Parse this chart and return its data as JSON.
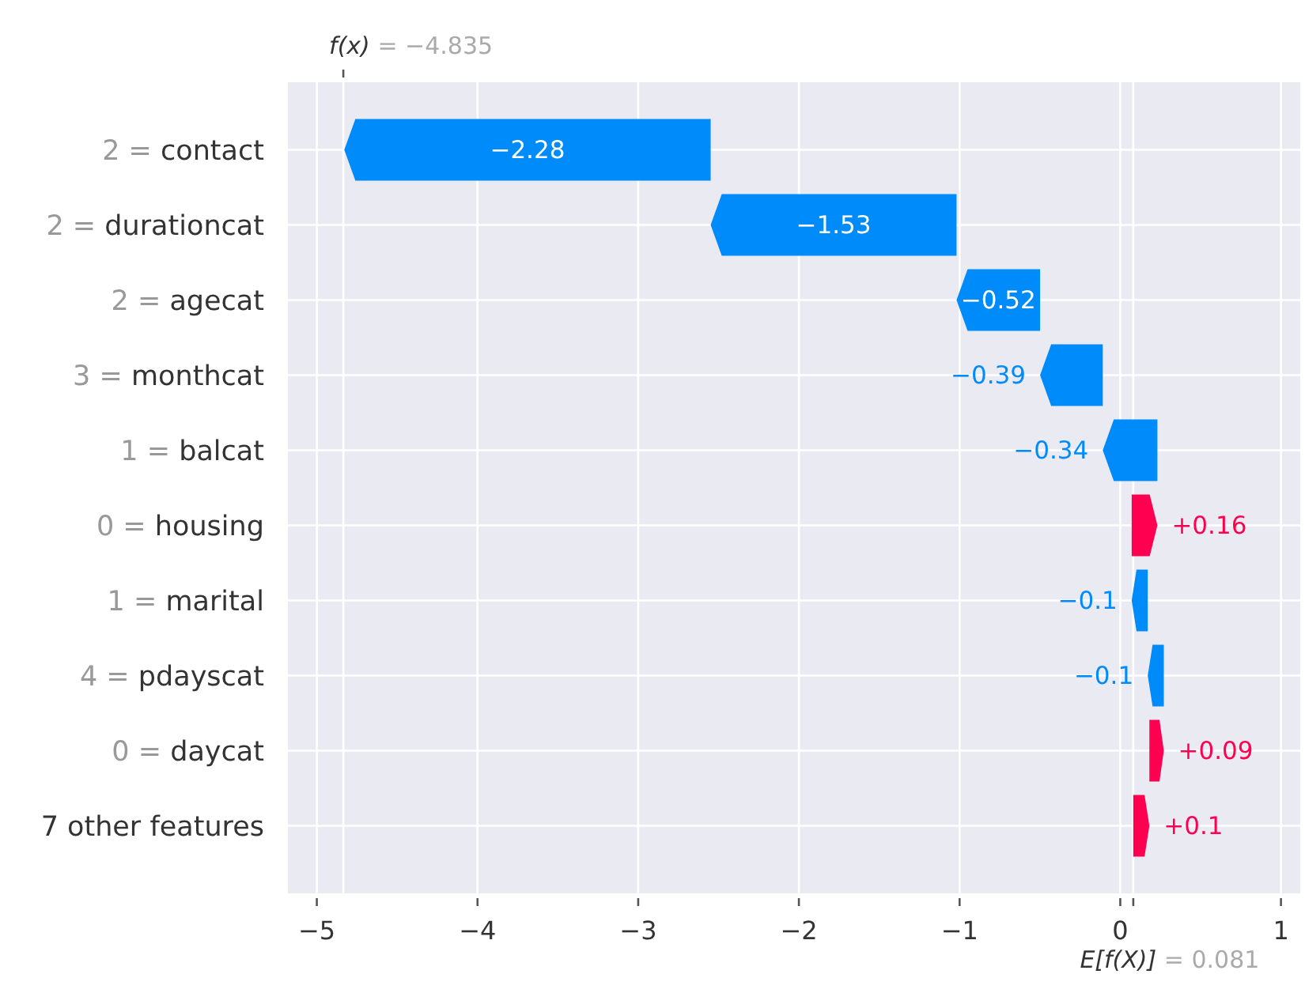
{
  "chart_data": {
    "type": "bar",
    "orientation": "horizontal",
    "categories": [
      "2 = contact",
      "2 = durationcat",
      "2 = agecat",
      "3 = monthcat",
      "1 = balcat",
      "0 = housing",
      "1 = marital",
      "4 = pdayscat",
      "0 = daycat",
      "7 other features"
    ],
    "values": [
      -2.28,
      -1.53,
      -0.52,
      -0.39,
      -0.34,
      0.16,
      -0.1,
      -0.1,
      0.09,
      0.1
    ],
    "base": [
      -2.549,
      -1.019,
      -0.499,
      -0.109,
      0.231,
      0.071,
      0.171,
      0.271,
      0.181,
      0.081
    ],
    "colors": [
      "#008bfb",
      "#008bfb",
      "#008bfb",
      "#008bfb",
      "#008bfb",
      "#ff0051",
      "#008bfb",
      "#008bfb",
      "#ff0051",
      "#ff0051"
    ],
    "value_labels": [
      "−2.28",
      "−1.53",
      "−0.52",
      "−0.39",
      "−0.34",
      "+0.16",
      "−0.1",
      "−0.1",
      "+0.09",
      "+0.1"
    ],
    "xlim": [
      -5.18,
      1.12
    ],
    "xticks": [
      -5,
      -4,
      -3,
      -2,
      -1,
      0,
      1
    ],
    "grid": true,
    "ref_lines": [
      {
        "axis": "x",
        "value": -4.835,
        "label": "f(x) = −4.835",
        "color": "#ffffff"
      },
      {
        "axis": "x",
        "value": 0.081,
        "label": "E[f(X)] = 0.081",
        "color": "#ffffff"
      }
    ]
  }
}
